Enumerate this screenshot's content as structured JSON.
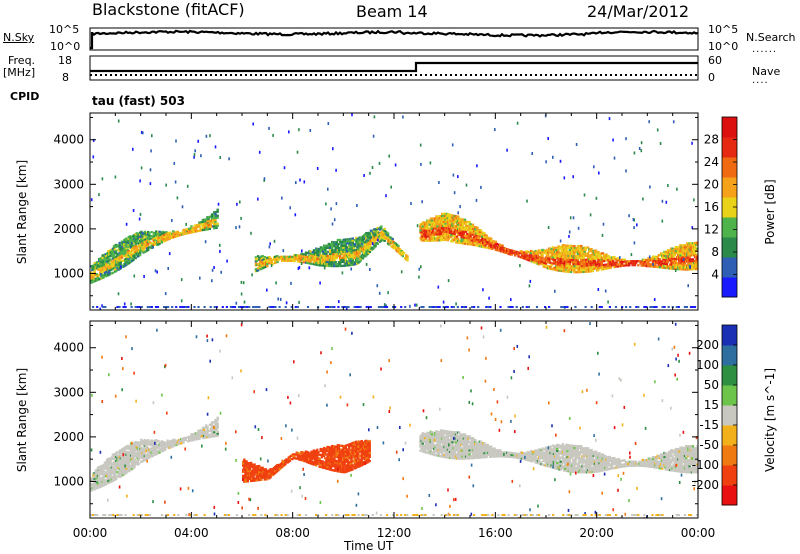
{
  "header": {
    "station": "Blackstone (fitACF)",
    "beam": "Beam 14",
    "date": "24/Mar/2012"
  },
  "aux_panel": {
    "nsky_label": "N.Sky",
    "nsky_ticks": [
      "10^5",
      "10^0"
    ],
    "nsearch_label": "N.Search",
    "nsearch_ticks": [
      "10^5",
      "10^0"
    ],
    "freq_label": "Freq.",
    "freq_unit": "[MHz]",
    "freq_ticks": [
      "18",
      "8"
    ],
    "nave_label": "Nave",
    "nave_ticks": [
      "60",
      "0"
    ],
    "cpid_label": "CPID",
    "cpid_value": "tau (fast) 503"
  },
  "chart_data": [
    {
      "type": "heatmap",
      "quantity": "Power",
      "ylabel": "Slant Range [km]",
      "xlabel": "Time UT",
      "x_ticks": [
        "00:00",
        "04:00",
        "08:00",
        "12:00",
        "16:00",
        "20:00",
        "00:00"
      ],
      "x_range_hours": [
        0,
        24
      ],
      "y_ticks": [
        1000,
        2000,
        3000,
        4000
      ],
      "ylim": [
        180,
        4600
      ],
      "colorbar": {
        "label": "Power [dB]",
        "ticks": [
          28,
          24,
          20,
          16,
          12,
          8,
          4
        ],
        "range": [
          0,
          32
        ],
        "colors": [
          "#1a1aff",
          "#2f5fb4",
          "#2b8a4a",
          "#4fb34b",
          "#e8d21a",
          "#f5a21a",
          "#f06a12",
          "#e62a12",
          "#dd1010"
        ]
      },
      "features": [
        {
          "name": "main_band_dawn",
          "t": [
            0.0,
            1.0,
            2.0,
            3.0,
            4.0,
            5.0
          ],
          "range": [
            950,
            1300,
            1650,
            1850,
            2000,
            2200
          ],
          "power": 14
        },
        {
          "name": "mid_band",
          "t": [
            6.5,
            7.5,
            9.0,
            10.5,
            11.5,
            12.5
          ],
          "range": [
            1200,
            1350,
            1350,
            1450,
            1900,
            1350
          ],
          "power": 14
        },
        {
          "name": "evening_band",
          "t": [
            13.0,
            14.0,
            15.0,
            16.5,
            18.0,
            20.0,
            22.0,
            24.0
          ],
          "range": [
            1900,
            2000,
            1850,
            1500,
            1300,
            1250,
            1250,
            1350
          ],
          "power": 22
        }
      ]
    },
    {
      "type": "heatmap",
      "quantity": "Velocity",
      "ylabel": "Slant Range [km]",
      "xlabel": "Time UT",
      "x_ticks": [
        "00:00",
        "04:00",
        "08:00",
        "12:00",
        "16:00",
        "20:00",
        "00:00"
      ],
      "x_range_hours": [
        0,
        24
      ],
      "y_ticks": [
        1000,
        2000,
        3000,
        4000
      ],
      "ylim": [
        180,
        4600
      ],
      "colorbar": {
        "label": "Velocity [m s^-1]",
        "ticks": [
          200,
          100,
          50,
          15,
          -15,
          -50,
          -100,
          -200
        ],
        "colors": [
          "#1a2fb4",
          "#2f6fa0",
          "#2e8f43",
          "#6dc44a",
          "#c8c8c0",
          "#f2b01a",
          "#f07a12",
          "#f04010",
          "#e81010"
        ]
      },
      "features": [
        {
          "name": "ground_scatter_dawn",
          "t": [
            0.0,
            2.0,
            4.0,
            5.0
          ],
          "range": [
            950,
            1650,
            2000,
            2200
          ],
          "velocity": 0
        },
        {
          "name": "fast_flow_morning",
          "t": [
            6.0,
            7.0,
            8.0,
            9.0,
            10.0,
            11.0
          ],
          "range": [
            1200,
            1150,
            1600,
            1500,
            1450,
            1650
          ],
          "velocity": -120
        },
        {
          "name": "ground_scatter_evening",
          "t": [
            13.0,
            16.0,
            20.0,
            24.0
          ],
          "range": [
            1850,
            1650,
            1400,
            1450
          ],
          "velocity": 0
        }
      ]
    }
  ]
}
